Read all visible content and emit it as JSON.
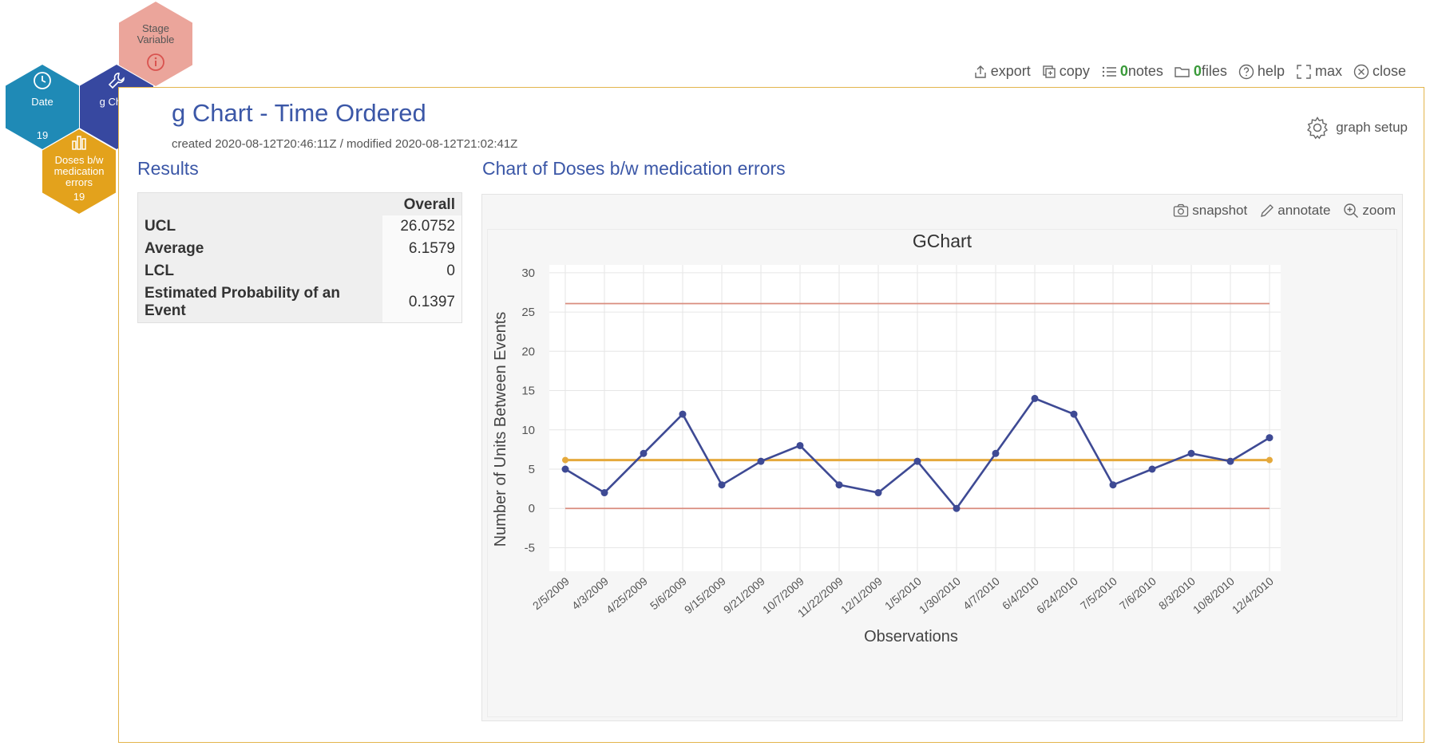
{
  "hexes": {
    "stage": {
      "label": "Stage Variable"
    },
    "date": {
      "label": "Date",
      "count": "19"
    },
    "gchart": {
      "label": "g Chart"
    },
    "doses": {
      "label": "Doses b/w medication errors",
      "count": "19"
    }
  },
  "toolbar": {
    "export": "export",
    "copy": "copy",
    "notes_count": "0",
    "notes": "notes",
    "files_count": "0",
    "files": "files",
    "help": "help",
    "max": "max",
    "close": "close"
  },
  "page": {
    "title": "g Chart - Time Ordered",
    "meta": "created 2020-08-12T20:46:11Z / modified 2020-08-12T21:02:41Z",
    "graph_setup": "graph setup"
  },
  "results": {
    "heading": "Results",
    "column": "Overall",
    "rows": [
      {
        "label": "UCL",
        "value": "26.0752"
      },
      {
        "label": "Average",
        "value": "6.1579"
      },
      {
        "label": "LCL",
        "value": "0"
      },
      {
        "label": "Estimated Probability of an Event",
        "value": "0.1397"
      }
    ]
  },
  "chart_panel": {
    "heading": "Chart of Doses b/w medication errors",
    "snapshot": "snapshot",
    "annotate": "annotate",
    "zoom": "zoom"
  },
  "colors": {
    "series": "#3e4a94",
    "control_limit": "#d98c7e",
    "average": "#e5a93c",
    "accent": "#3b57a7"
  },
  "chart_data": {
    "type": "line",
    "title": "GChart",
    "xlabel": "Observations",
    "ylabel": "Number of Units Between Events",
    "ylim": [
      -8,
      31
    ],
    "yticks": [
      -5,
      0,
      5,
      10,
      15,
      20,
      25,
      30
    ],
    "grid": true,
    "categories": [
      "2/5/2009",
      "4/3/2009",
      "4/25/2009",
      "5/6/2009",
      "9/15/2009",
      "9/21/2009",
      "10/7/2009",
      "11/22/2009",
      "12/1/2009",
      "1/5/2010",
      "1/30/2010",
      "4/7/2010",
      "6/4/2010",
      "6/24/2010",
      "7/5/2010",
      "7/6/2010",
      "8/3/2010",
      "10/8/2010",
      "12/4/2010"
    ],
    "series": [
      {
        "values": [
          5,
          2,
          7,
          12,
          3,
          6,
          8,
          3,
          2,
          6,
          0,
          7,
          14,
          12,
          3,
          5,
          7,
          6,
          9
        ]
      }
    ],
    "limits": {
      "ucl": 26.0752,
      "average": 6.1579,
      "lcl": 0
    }
  }
}
